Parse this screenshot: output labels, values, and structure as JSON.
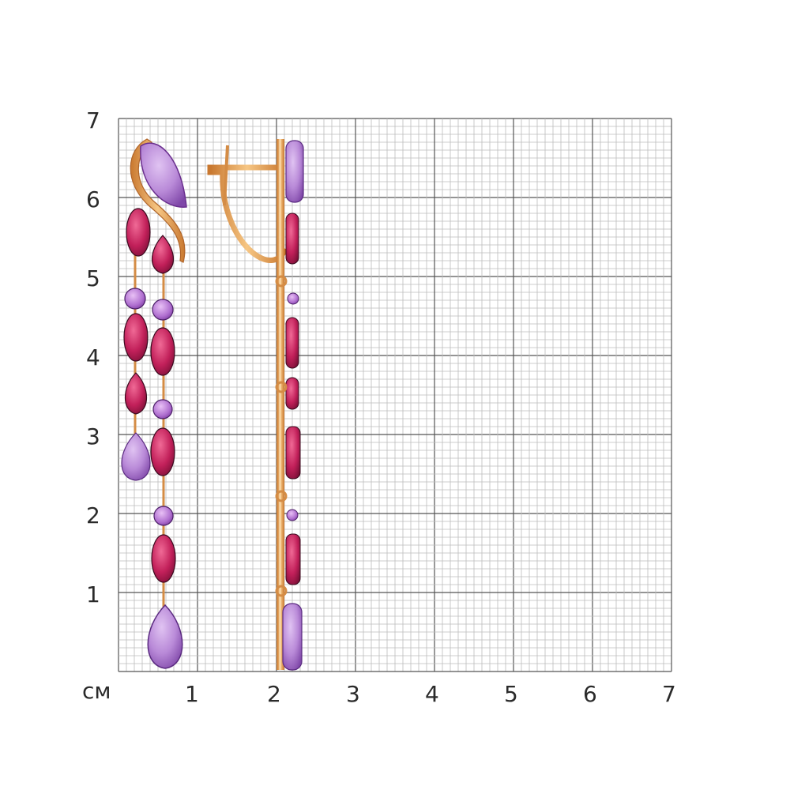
{
  "ruler": {
    "unit": "см",
    "x_ticks": [
      "1",
      "2",
      "3",
      "4",
      "5",
      "6",
      "7"
    ],
    "y_ticks": [
      "1",
      "2",
      "3",
      "4",
      "5",
      "6",
      "7"
    ],
    "range_cm": [
      0,
      7
    ],
    "subdivisions_per_cm": 10
  },
  "photo": {
    "subject": "earrings",
    "metal_color": "#E8A55A",
    "stone_colors": {
      "amethyst_light": "#B98AD8",
      "amethyst_dark": "#8E4FB8",
      "rhodolite": "#C2205A",
      "rhodolite_dark": "#7A0F35",
      "small_stone": "#A25CC0"
    }
  }
}
